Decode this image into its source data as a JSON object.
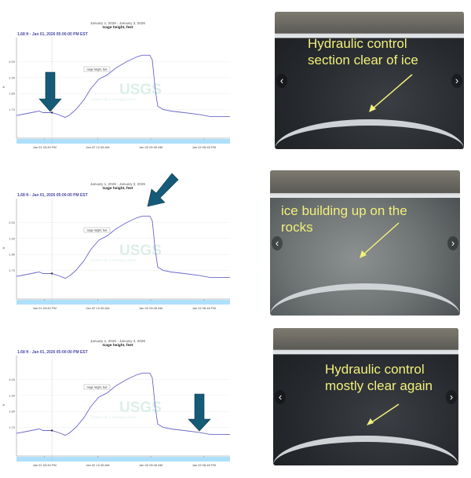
{
  "colors": {
    "line": "#6a67c9",
    "arrow": "#155b78",
    "annotation": "#f2f07c",
    "navigator": "#aee0fb"
  },
  "chart_data": [
    {
      "type": "line",
      "title": "January 1, 2026 - January 3, 2026",
      "subtitle": "Gage height, feet",
      "readout": "1.68 ft - Jan 01, 2026 05:00:00 PM EST",
      "ylabel": "ft",
      "legend": "Gage height, feet",
      "watermark": "USGS",
      "watermark_tagline": "science for a changing world",
      "grid": true,
      "ylim": [
        1.52,
        2.15
      ],
      "xlim": [
        "2026-01-01T11:00",
        "2026-01-02T23:10"
      ],
      "yticks": [
        "2.00",
        "1.90",
        "1.80",
        "1.70"
      ],
      "xticks": [
        {
          "t": "2026-01-01T15:45",
          "label": "Jan 01 03:45 PM"
        },
        {
          "t": "2026-01-02T00:45",
          "label": "Jan 02 12:45 AM"
        },
        {
          "t": "2026-01-02T09:45",
          "label": "Jan 02 09:45 AM"
        },
        {
          "t": "2026-01-02T18:45",
          "label": "Jan 02 06:45 PM"
        }
      ],
      "highlight": {
        "t": "2026-01-01T17:00",
        "value": 1.68
      },
      "annotation_arrow": "down-at-start"
    },
    {
      "type": "line",
      "title": "January 1, 2026 - January 3, 2026",
      "subtitle": "Gage height, feet",
      "readout": "1.68 ft - Jan 01, 2026 05:00:00 PM EST",
      "ylabel": "ft",
      "legend": "Gage height, feet",
      "watermark": "USGS",
      "watermark_tagline": "science for a changing world",
      "grid": true,
      "ylim": [
        1.52,
        2.15
      ],
      "xlim": [
        "2026-01-01T11:00",
        "2026-01-02T23:10"
      ],
      "yticks": [
        "2.00",
        "1.90",
        "1.80",
        "1.70"
      ],
      "xticks": [
        {
          "t": "2026-01-01T15:45",
          "label": "Jan 01 03:45 PM"
        },
        {
          "t": "2026-01-02T00:45",
          "label": "Jan 02 12:45 AM"
        },
        {
          "t": "2026-01-02T09:45",
          "label": "Jan 02 09:45 AM"
        },
        {
          "t": "2026-01-02T18:45",
          "label": "Jan 02 06:45 PM"
        }
      ],
      "highlight": {
        "t": "2026-01-01T17:00",
        "value": 1.68
      },
      "annotation_arrow": "diagonal-at-peak"
    },
    {
      "type": "line",
      "title": "January 1, 2026 - January 3, 2026",
      "subtitle": "Gage height, feet",
      "readout": "1.68 ft - Jan 01, 2026 05:00:00 PM EST",
      "ylabel": "ft",
      "legend": "Gage height, feet",
      "watermark": "USGS",
      "watermark_tagline": "science for a changing world",
      "grid": true,
      "ylim": [
        1.52,
        2.15
      ],
      "xlim": [
        "2026-01-01T11:00",
        "2026-01-02T23:10"
      ],
      "yticks": [
        "2.00",
        "1.90",
        "1.80",
        "1.70"
      ],
      "xticks": [
        {
          "t": "2026-01-01T15:45",
          "label": "Jan 01 03:45 PM"
        },
        {
          "t": "2026-01-02T00:45",
          "label": "Jan 02 12:45 AM"
        },
        {
          "t": "2026-01-02T09:45",
          "label": "Jan 02 09:45 AM"
        },
        {
          "t": "2026-01-02T18:45",
          "label": "Jan 02 06:45 PM"
        }
      ],
      "highlight": {
        "t": "2026-01-01T17:00",
        "value": 1.68
      },
      "annotation_arrow": "down-at-recession"
    }
  ],
  "series": {
    "name": "Gage height, feet",
    "points": [
      [
        "2026-01-01T11:00",
        1.662
      ],
      [
        "2026-01-01T12:10",
        1.67
      ],
      [
        "2026-01-01T13:30",
        1.68
      ],
      [
        "2026-01-01T14:50",
        1.69
      ],
      [
        "2026-01-01T15:30",
        1.68
      ],
      [
        "2026-01-01T17:00",
        1.68
      ],
      [
        "2026-01-01T18:15",
        1.665
      ],
      [
        "2026-01-01T19:15",
        1.65
      ],
      [
        "2026-01-01T20:00",
        1.665
      ],
      [
        "2026-01-01T21:05",
        1.7
      ],
      [
        "2026-01-01T22:25",
        1.76
      ],
      [
        "2026-01-01T23:35",
        1.83
      ],
      [
        "2026-01-02T00:58",
        1.89
      ],
      [
        "2026-01-02T02:20",
        1.915
      ],
      [
        "2026-01-02T03:50",
        1.96
      ],
      [
        "2026-01-02T05:40",
        2.0
      ],
      [
        "2026-01-02T07:25",
        2.03
      ],
      [
        "2026-01-02T08:20",
        2.04
      ],
      [
        "2026-01-02T09:35",
        2.04
      ],
      [
        "2026-01-02T10:00",
        2.01
      ],
      [
        "2026-01-02T10:30",
        1.83
      ],
      [
        "2026-01-02T10:55",
        1.72
      ],
      [
        "2026-01-02T11:50",
        1.7
      ],
      [
        "2026-01-02T13:10",
        1.69
      ],
      [
        "2026-01-02T15:25",
        1.68
      ],
      [
        "2026-01-02T18:05",
        1.667
      ],
      [
        "2026-01-02T19:50",
        1.655
      ],
      [
        "2026-01-02T23:10",
        1.655
      ]
    ]
  },
  "photos": [
    {
      "caption_lines": [
        "Hydraulic control",
        "section clear of ice"
      ],
      "prev": "‹",
      "next": "›"
    },
    {
      "caption_lines": [
        "ice building up on the",
        "rocks"
      ],
      "prev": "‹",
      "next": "›"
    },
    {
      "caption_lines": [
        "Hydraulic control",
        "mostly clear again"
      ],
      "prev": "‹",
      "next": "›"
    }
  ]
}
